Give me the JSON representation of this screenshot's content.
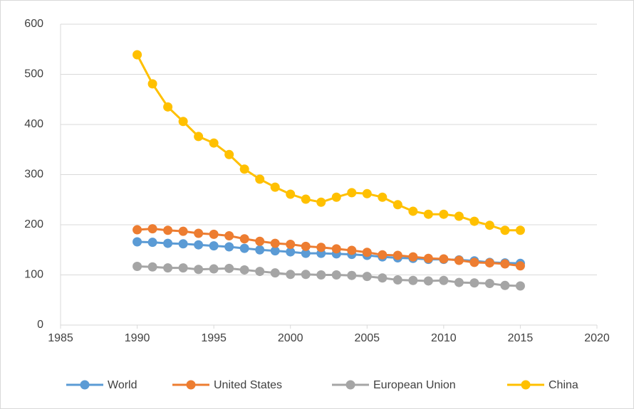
{
  "chart_data": {
    "type": "line",
    "x": [
      1990,
      1991,
      1992,
      1993,
      1994,
      1995,
      1996,
      1997,
      1998,
      1999,
      2000,
      2001,
      2002,
      2003,
      2004,
      2005,
      2006,
      2007,
      2008,
      2009,
      2010,
      2011,
      2012,
      2013,
      2014,
      2015
    ],
    "series": [
      {
        "name": "World",
        "color": "#5b9bd5",
        "values": [
          166,
          165,
          163,
          162,
          160,
          158,
          156,
          153,
          150,
          148,
          146,
          143,
          143,
          142,
          141,
          139,
          136,
          134,
          133,
          131,
          131,
          130,
          128,
          125,
          124,
          123
        ]
      },
      {
        "name": "United States",
        "color": "#ed7d31",
        "values": [
          190,
          192,
          189,
          187,
          183,
          181,
          178,
          172,
          167,
          163,
          161,
          157,
          155,
          152,
          149,
          145,
          140,
          139,
          136,
          133,
          132,
          129,
          125,
          124,
          122,
          118
        ]
      },
      {
        "name": "European Union",
        "color": "#a5a5a5",
        "values": [
          117,
          116,
          114,
          114,
          111,
          112,
          113,
          110,
          107,
          104,
          101,
          101,
          100,
          100,
          99,
          97,
          94,
          90,
          89,
          88,
          89,
          85,
          84,
          83,
          79,
          78
        ]
      },
      {
        "name": "China",
        "color": "#ffc000",
        "values": [
          539,
          481,
          435,
          406,
          376,
          363,
          340,
          311,
          291,
          275,
          261,
          251,
          245,
          255,
          264,
          262,
          255,
          240,
          227,
          221,
          221,
          217,
          207,
          199,
          189,
          189
        ]
      }
    ],
    "xlim": [
      1985,
      2020
    ],
    "xticks": [
      1985,
      1990,
      1995,
      2000,
      2005,
      2010,
      2015,
      2020
    ],
    "ylim": [
      0,
      600
    ],
    "yticks": [
      0,
      100,
      200,
      300,
      400,
      500,
      600
    ],
    "grid": true,
    "legend": "bottom"
  }
}
